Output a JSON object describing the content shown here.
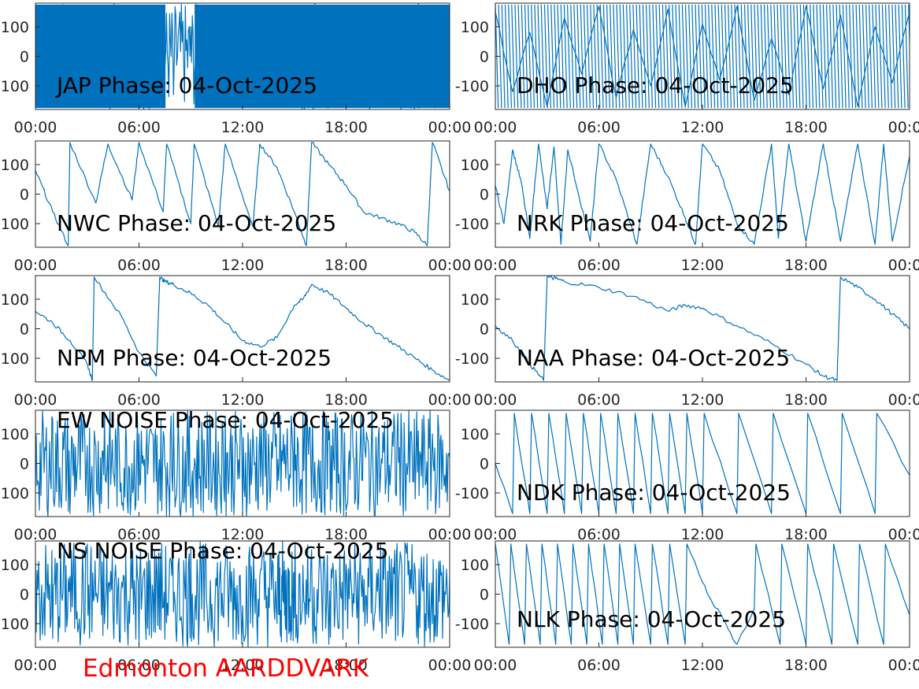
{
  "footer": {
    "text": "Edmonton AARDDVARK",
    "color": "#FF0000"
  },
  "trace_color": "#0072BD",
  "chart_data": [
    {
      "type": "line",
      "title": "JAP Phase: 04-Oct-2025",
      "x_tick_labels": [
        "00:00",
        "06:00",
        "12:00",
        "18:00",
        "00:00"
      ],
      "xlim_hours": [
        0,
        24
      ],
      "y_tick_labels": [
        "100",
        "0",
        "-100"
      ],
      "ylim": [
        -180,
        180
      ],
      "grid": false,
      "character": "noise",
      "series": [
        {
          "x_hours": [
            0,
            1,
            2,
            3,
            4,
            5,
            6,
            7,
            8,
            9,
            10,
            11,
            12,
            13,
            14,
            15,
            16,
            17,
            18,
            19,
            20,
            21,
            22,
            23,
            24
          ],
          "values": [
            20,
            -150,
            160,
            -90,
            120,
            -170,
            60,
            140,
            -130,
            100,
            -40,
            170,
            -160,
            90,
            -110,
            150,
            -70,
            130,
            -170,
            40,
            170,
            -120,
            80,
            -150,
            100
          ]
        }
      ]
    },
    {
      "type": "line",
      "title": "DHO Phase: 04-Oct-2025",
      "x_tick_labels": [
        "00:00",
        "06:00",
        "12:00",
        "18:00",
        "00:00"
      ],
      "xlim_hours": [
        0,
        24
      ],
      "y_tick_labels": [
        "100",
        "0",
        "-100"
      ],
      "ylim": [
        -180,
        180
      ],
      "grid": false,
      "character": "fast sawtooth",
      "series": [
        {
          "x_hours": [
            0,
            1,
            2,
            3,
            4,
            5,
            6,
            7,
            8,
            9,
            10,
            11,
            12,
            13,
            14,
            15,
            16,
            17,
            18,
            19,
            20,
            21,
            22,
            23,
            24
          ],
          "values": [
            150,
            -120,
            80,
            -170,
            130,
            -60,
            170,
            -140,
            90,
            -100,
            160,
            -170,
            110,
            -80,
            170,
            -150,
            60,
            -130,
            170,
            -110,
            140,
            -170,
            100,
            -90,
            150
          ]
        }
      ]
    },
    {
      "type": "line",
      "title": "NWC Phase: 04-Oct-2025",
      "x_tick_labels": [
        "00:00",
        "06:00",
        "12:00",
        "18:00",
        "00:00"
      ],
      "xlim_hours": [
        0,
        24
      ],
      "y_tick_labels": [
        "100",
        "0",
        "-100"
      ],
      "ylim": [
        -180,
        180
      ],
      "grid": false,
      "character": "wrapped sawtooth",
      "series": [
        {
          "x_hours": [
            0,
            1,
            1.9,
            2,
            3.5,
            4.2,
            5.6,
            6,
            7.4,
            7.6,
            9,
            9.2,
            10.6,
            11,
            12.6,
            13,
            14,
            15,
            15.7,
            16,
            17,
            18,
            19,
            20,
            21,
            22,
            22.7,
            23,
            24
          ],
          "values": [
            80,
            -60,
            -175,
            175,
            -30,
            170,
            -20,
            175,
            -60,
            170,
            -100,
            170,
            -110,
            170,
            -110,
            170,
            90,
            -60,
            -175,
            175,
            100,
            30,
            -60,
            -80,
            -100,
            -130,
            -175,
            175,
            10
          ]
        }
      ]
    },
    {
      "type": "line",
      "title": "NRK Phase: 04-Oct-2025",
      "x_tick_labels": [
        "00:00",
        "06:00",
        "12:00",
        "18:00",
        "00:00"
      ],
      "xlim_hours": [
        0,
        24
      ],
      "y_tick_labels": [
        "100",
        "0",
        "-100"
      ],
      "ylim": [
        -180,
        180
      ],
      "grid": false,
      "character": "wrapped sawtooth",
      "series": [
        {
          "x_hours": [
            0,
            0.5,
            1,
            1.5,
            2,
            2.5,
            3,
            3.4,
            3.8,
            4.2,
            5.5,
            6,
            7,
            8.2,
            9,
            10,
            11,
            11.6,
            12,
            13,
            14,
            15,
            16,
            16.4,
            17,
            18,
            19,
            20,
            21,
            22,
            22.5,
            23,
            24
          ],
          "values": [
            30,
            -100,
            150,
            40,
            -150,
            170,
            -50,
            160,
            -170,
            150,
            -160,
            170,
            50,
            -170,
            170,
            60,
            -80,
            -170,
            170,
            80,
            -100,
            -170,
            170,
            -150,
            170,
            -160,
            170,
            -160,
            170,
            -170,
            170,
            -160,
            130
          ]
        }
      ]
    },
    {
      "type": "line",
      "title": "NPM Phase: 04-Oct-2025",
      "x_tick_labels": [
        "00:00",
        "06:00",
        "12:00",
        "18:00",
        "00:00"
      ],
      "xlim_hours": [
        0,
        24
      ],
      "y_tick_labels": [
        "100",
        "0",
        "-100"
      ],
      "ylim": [
        -180,
        180
      ],
      "grid": false,
      "character": "slow drift",
      "series": [
        {
          "x_hours": [
            0,
            1,
            2,
            3,
            3.3,
            3.4,
            5,
            6,
            7,
            7.2,
            7.5,
            8,
            9,
            10,
            11,
            12,
            13,
            14,
            15,
            15.5,
            16,
            17,
            18,
            19,
            20,
            21,
            22,
            23,
            24
          ],
          "values": [
            60,
            20,
            -40,
            -120,
            -175,
            175,
            40,
            -80,
            -160,
            175,
            160,
            150,
            120,
            80,
            20,
            -40,
            -60,
            -30,
            80,
            100,
            150,
            120,
            70,
            20,
            -20,
            -60,
            -100,
            -140,
            -175
          ]
        }
      ]
    },
    {
      "type": "line",
      "title": "NAA Phase: 04-Oct-2025",
      "x_tick_labels": [
        "00:00",
        "06:00",
        "12:00",
        "18:00",
        "00:00"
      ],
      "xlim_hours": [
        0,
        24
      ],
      "y_tick_labels": [
        "100",
        "0",
        "-100"
      ],
      "ylim": [
        -180,
        180
      ],
      "grid": false,
      "character": "slow drift",
      "series": [
        {
          "x_hours": [
            0,
            1,
            2,
            2.8,
            3,
            3.5,
            4,
            6,
            8,
            10,
            11,
            12,
            14,
            16,
            18,
            19,
            19.8,
            20,
            21,
            22,
            23,
            24
          ],
          "values": [
            10,
            -40,
            -120,
            -175,
            175,
            170,
            160,
            140,
            110,
            60,
            80,
            70,
            10,
            -50,
            -120,
            -160,
            -175,
            175,
            140,
            100,
            50,
            0
          ]
        }
      ]
    },
    {
      "type": "line",
      "title": "EW NOISE Phase: 04-Oct-2025",
      "x_tick_labels": [
        "00:00",
        "06:00",
        "12:00",
        "18:00",
        "00:00"
      ],
      "xlim_hours": [
        0,
        24
      ],
      "y_tick_labels": [
        "100",
        "0",
        "-100"
      ],
      "ylim": [
        -180,
        180
      ],
      "grid": false,
      "character": "noise",
      "series": [
        {
          "x_hours": [
            0,
            1,
            2,
            3,
            4,
            5,
            6,
            7,
            8,
            9,
            10,
            11,
            12,
            13,
            14,
            15,
            16,
            17,
            18,
            19,
            20,
            21,
            22,
            23,
            24
          ],
          "values": [
            -100,
            150,
            -170,
            60,
            170,
            -140,
            100,
            -60,
            170,
            -150,
            40,
            160,
            -170,
            120,
            -90,
            170,
            -130,
            80,
            -160,
            150,
            -40,
            170,
            -120,
            100,
            20
          ]
        }
      ]
    },
    {
      "type": "line",
      "title": "NDK Phase: 04-Oct-2025",
      "x_tick_labels": [
        "00:00",
        "06:00",
        "12:00",
        "18:00",
        "00:00"
      ],
      "xlim_hours": [
        0,
        24
      ],
      "y_tick_labels": [
        "100",
        "0",
        "-100"
      ],
      "ylim": [
        -180,
        180
      ],
      "grid": false,
      "character": "fast sawtooth",
      "series": [
        {
          "x_hours": [
            0,
            1,
            1.1,
            2,
            2.1,
            3,
            3.1,
            4,
            4.1,
            5,
            5.1,
            6,
            6.1,
            7,
            7.1,
            8,
            8.1,
            9,
            9.1,
            10,
            10.1,
            11,
            11.1,
            12,
            12.1,
            14,
            14.1,
            16,
            16.1,
            18,
            18.1,
            20,
            20.1,
            22,
            22.1,
            24
          ],
          "values": [
            0,
            -170,
            170,
            -170,
            170,
            -170,
            170,
            -170,
            170,
            -170,
            170,
            -170,
            170,
            -170,
            170,
            -170,
            170,
            -170,
            170,
            -170,
            170,
            -170,
            170,
            -170,
            170,
            -170,
            170,
            -170,
            170,
            -170,
            170,
            -170,
            170,
            -170,
            170,
            -40
          ]
        }
      ]
    },
    {
      "type": "line",
      "title": "NS NOISE Phase: 04-Oct-2025",
      "x_tick_labels": [
        "00:00",
        "06:00",
        "12:00",
        "18:00",
        "00:00"
      ],
      "xlim_hours": [
        0,
        24
      ],
      "y_tick_labels": [
        "100",
        "0",
        "-100"
      ],
      "ylim": [
        -180,
        180
      ],
      "grid": false,
      "character": "noise",
      "series": [
        {
          "x_hours": [
            0,
            1,
            2,
            3,
            4,
            5,
            6,
            7,
            8,
            9,
            10,
            11,
            12,
            13,
            14,
            14.5,
            15,
            16,
            17,
            18,
            19,
            20,
            21,
            22,
            23,
            24
          ],
          "values": [
            120,
            -150,
            60,
            170,
            -100,
            40,
            -170,
            130,
            -60,
            160,
            -130,
            100,
            -40,
            60,
            -100,
            -120,
            -80,
            150,
            -170,
            100,
            -60,
            170,
            -140,
            80,
            -100,
            60
          ]
        }
      ]
    },
    {
      "type": "line",
      "title": "NLK Phase: 04-Oct-2025",
      "x_tick_labels": [
        "00:00",
        "06:00",
        "12:00",
        "18:00",
        "00:00"
      ],
      "xlim_hours": [
        0,
        24
      ],
      "y_tick_labels": [
        "100",
        "0",
        "-100"
      ],
      "ylim": [
        -180,
        180
      ],
      "grid": false,
      "character": "fast sawtooth",
      "series": [
        {
          "x_hours": [
            0,
            0.8,
            0.9,
            1.7,
            1.8,
            2.6,
            2.7,
            3.5,
            3.6,
            4.4,
            4.5,
            5.3,
            5.4,
            6.2,
            6.3,
            7.1,
            7.2,
            8,
            8.1,
            9,
            9.1,
            10,
            10.1,
            11,
            11.1,
            12,
            12.5,
            13,
            13.5,
            14,
            15,
            15.1,
            16.5,
            16.6,
            18,
            18.1,
            19.5,
            19.6,
            21,
            21.1,
            22.5,
            22.6,
            24
          ],
          "values": [
            170,
            -170,
            170,
            -170,
            170,
            -170,
            170,
            -170,
            170,
            -170,
            170,
            -170,
            170,
            -170,
            170,
            -170,
            170,
            -170,
            170,
            -170,
            170,
            -170,
            170,
            -170,
            170,
            40,
            -20,
            -60,
            -120,
            -170,
            -50,
            170,
            -170,
            170,
            -170,
            170,
            -170,
            170,
            -170,
            170,
            -170,
            170,
            -70
          ]
        }
      ]
    }
  ]
}
